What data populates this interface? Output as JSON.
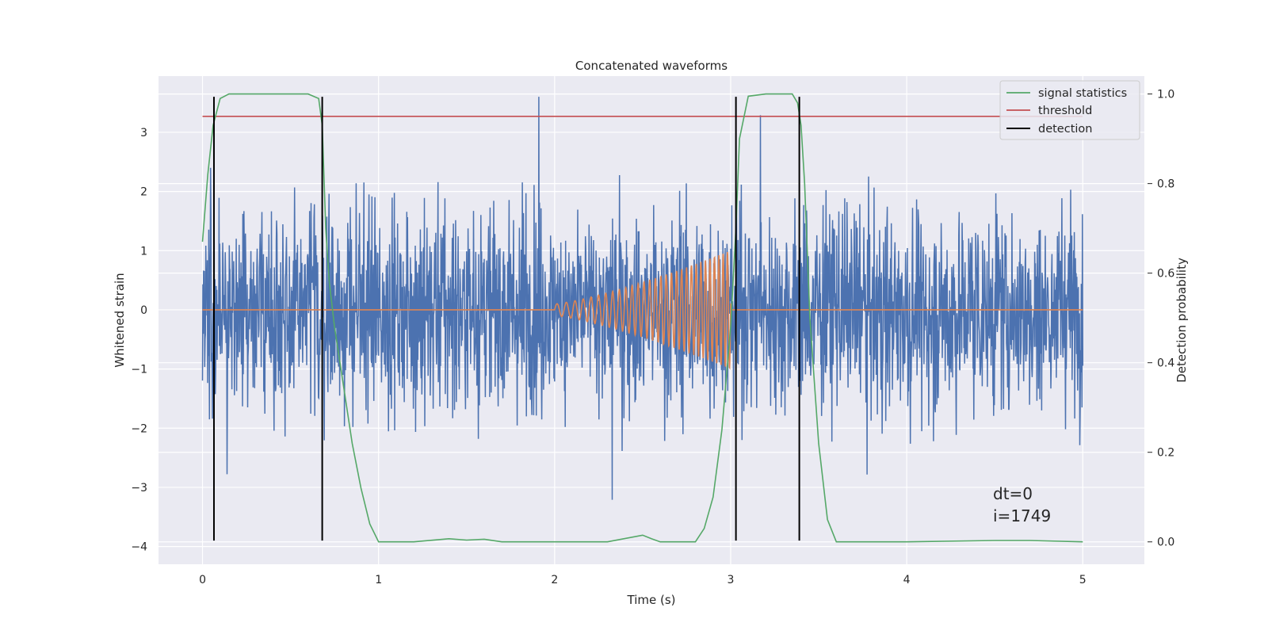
{
  "chart_data": {
    "type": "line",
    "title": "Concatenated waveforms",
    "xlabel": "Time (s)",
    "ylabel": "Whitened strain",
    "ylabel_right": "Detection probability",
    "xlim": [
      -0.25,
      5.35
    ],
    "ylim": [
      -4.3,
      3.95
    ],
    "ylim_right": [
      -0.05,
      1.04
    ],
    "x_ticks": [
      0,
      1,
      2,
      3,
      4,
      5
    ],
    "y_ticks": [
      -4,
      -3,
      -2,
      -1,
      0,
      1,
      2,
      3
    ],
    "y_ticks_right": [
      0.0,
      0.2,
      0.4,
      0.6,
      0.8,
      1.0
    ],
    "x_tick_labels": [
      "0",
      "1",
      "2",
      "3",
      "4",
      "5"
    ],
    "y_tick_labels": [
      "−4",
      "−3",
      "−2",
      "−1",
      "0",
      "1",
      "2",
      "3"
    ],
    "y_tick_labels_right": [
      "0.0",
      "0.2",
      "0.4",
      "0.6",
      "0.8",
      "1.0"
    ],
    "grid": true,
    "legend_position": "top-right",
    "colors": {
      "background": "#eaeaf2",
      "grid": "#ffffff",
      "strain": "#4c72b0",
      "template": "#dd8452",
      "signal_statistics": "#55a868",
      "threshold": "#c44e52",
      "detection": "#000000"
    },
    "legend": [
      "signal statistics",
      "threshold",
      "detection"
    ],
    "series": [
      {
        "name": "signal statistics",
        "axis": "right",
        "x": [
          0,
          0.03,
          0.06,
          0.1,
          0.15,
          0.3,
          0.6,
          0.66,
          0.68,
          0.7,
          0.72,
          0.75,
          0.8,
          0.85,
          0.9,
          0.95,
          1.0,
          1.2,
          1.4,
          1.5,
          1.6,
          1.7,
          2.0,
          2.3,
          2.5,
          2.55,
          2.6,
          2.8,
          2.85,
          2.9,
          2.95,
          3.0,
          3.03,
          3.05,
          3.1,
          3.2,
          3.35,
          3.38,
          3.4,
          3.42,
          3.45,
          3.5,
          3.55,
          3.6,
          4.0,
          4.5,
          4.7,
          5.0
        ],
        "y": [
          0.67,
          0.82,
          0.93,
          0.99,
          1.0,
          1.0,
          1.0,
          0.99,
          0.93,
          0.7,
          0.58,
          0.48,
          0.35,
          0.22,
          0.12,
          0.04,
          0.0,
          0.0,
          0.007,
          0.004,
          0.006,
          0.0,
          0.0,
          0.0,
          0.015,
          0.007,
          0.0,
          0.0,
          0.03,
          0.1,
          0.25,
          0.48,
          0.7,
          0.9,
          0.995,
          1.0,
          1.0,
          0.98,
          0.93,
          0.8,
          0.5,
          0.22,
          0.05,
          0.0,
          0.0,
          0.003,
          0.003,
          0.0
        ]
      },
      {
        "name": "threshold",
        "axis": "right",
        "x": [
          0,
          5
        ],
        "y": [
          0.95,
          0.95
        ]
      },
      {
        "name": "detection",
        "axis": "left",
        "type": "vlines",
        "x": [
          0.065,
          0.68,
          3.03,
          3.39
        ],
        "ymin": -3.9,
        "ymax": 3.6
      },
      {
        "name": "",
        "axis": "left",
        "description_key": "template chirp",
        "x_start": 2.0,
        "x_end": 3.0,
        "amp_start": 0.1,
        "amp_end": 1.0,
        "freq_start": 18,
        "freq_end": 42
      },
      {
        "name": "",
        "axis": "left",
        "description_key": "whitened strain noise",
        "x_start": 0,
        "x_end": 5,
        "approx_range": [
          -3.9,
          3.6
        ]
      }
    ],
    "annotations": [
      "dt=0",
      "i=1749"
    ]
  }
}
